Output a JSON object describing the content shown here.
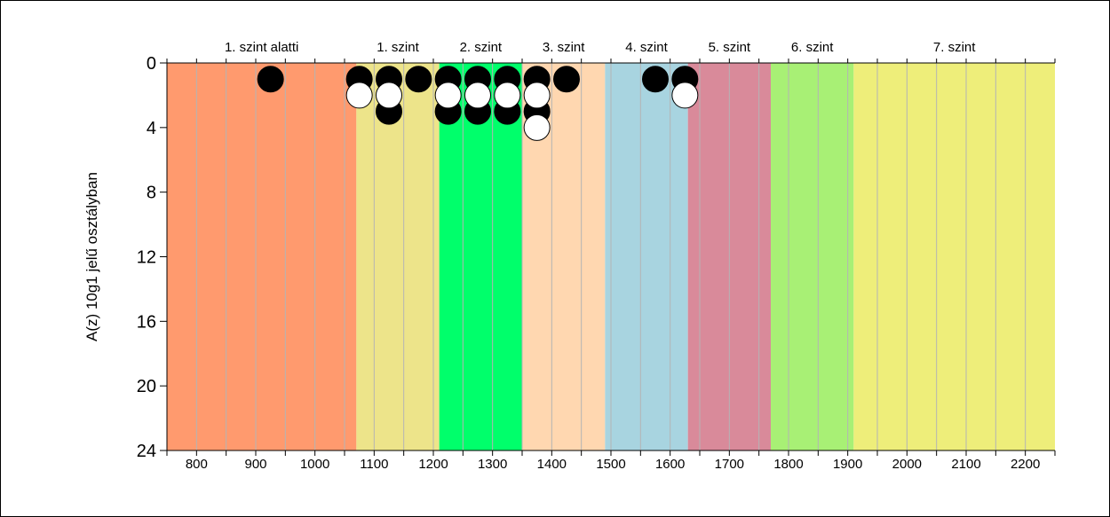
{
  "chart_data": {
    "type": "scatter",
    "title": "",
    "xlabel": "",
    "ylabel": "A(z) 10g1 jelű osztályban",
    "xlim": [
      750,
      2250
    ],
    "ylim": [
      0,
      24
    ],
    "y_inverted": true,
    "x_ticks": [
      800,
      900,
      1000,
      1100,
      1200,
      1300,
      1400,
      1500,
      1600,
      1700,
      1800,
      1900,
      2000,
      2100,
      2200
    ],
    "y_ticks": [
      0,
      4,
      8,
      12,
      16,
      20,
      24
    ],
    "minor_grid_step": 50,
    "grid": true,
    "levels": [
      {
        "label": "1. szint alatti",
        "from": 750,
        "to": 1070,
        "color": "#ff9a6e"
      },
      {
        "label": "1. szint",
        "from": 1070,
        "to": 1210,
        "color": "#ede48a"
      },
      {
        "label": "2. szint",
        "from": 1210,
        "to": 1350,
        "color": "#00ff6b"
      },
      {
        "label": "3. szint",
        "from": 1350,
        "to": 1490,
        "color": "#ffd7b0"
      },
      {
        "label": "4. szint",
        "from": 1490,
        "to": 1630,
        "color": "#a8d4e0"
      },
      {
        "label": "5. szint",
        "from": 1630,
        "to": 1770,
        "color": "#d98a9a"
      },
      {
        "label": "6. szint",
        "from": 1770,
        "to": 1910,
        "color": "#a8f075"
      },
      {
        "label": "7. szint",
        "from": 1910,
        "to": 2250,
        "color": "#eeee7a"
      }
    ],
    "series": [
      {
        "marker": "filled-black",
        "points": [
          {
            "x": 925,
            "y": 1
          },
          {
            "x": 1075,
            "y": 1
          },
          {
            "x": 1125,
            "y": 1
          },
          {
            "x": 1125,
            "y": 3
          },
          {
            "x": 1175,
            "y": 1
          },
          {
            "x": 1225,
            "y": 1
          },
          {
            "x": 1225,
            "y": 3
          },
          {
            "x": 1275,
            "y": 1
          },
          {
            "x": 1275,
            "y": 3
          },
          {
            "x": 1325,
            "y": 1
          },
          {
            "x": 1325,
            "y": 3
          },
          {
            "x": 1375,
            "y": 1
          },
          {
            "x": 1375,
            "y": 3
          },
          {
            "x": 1425,
            "y": 1
          },
          {
            "x": 1575,
            "y": 1
          },
          {
            "x": 1625,
            "y": 1
          }
        ]
      },
      {
        "marker": "hollow-white",
        "points": [
          {
            "x": 1075,
            "y": 2
          },
          {
            "x": 1125,
            "y": 2
          },
          {
            "x": 1225,
            "y": 2
          },
          {
            "x": 1275,
            "y": 2
          },
          {
            "x": 1325,
            "y": 2
          },
          {
            "x": 1375,
            "y": 2
          },
          {
            "x": 1375,
            "y": 4
          },
          {
            "x": 1625,
            "y": 2
          }
        ]
      }
    ]
  }
}
